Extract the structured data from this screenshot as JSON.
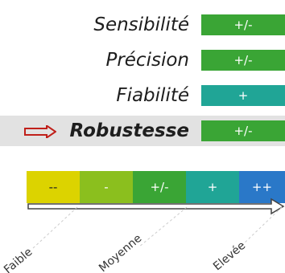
{
  "criteria": [
    {
      "label": "Sensibilité",
      "value": "+/-",
      "color": "#3aa535",
      "highlighted": false
    },
    {
      "label": "Précision",
      "value": "+/-",
      "color": "#3aa535",
      "highlighted": false
    },
    {
      "label": "Fiabilité",
      "value": "+",
      "color": "#20a596",
      "highlighted": false
    },
    {
      "label": "Robustesse",
      "value": "+/-",
      "color": "#3aa535",
      "highlighted": true
    }
  ],
  "scale": {
    "segments": [
      {
        "label": "--",
        "color": "#dcd300"
      },
      {
        "label": "-",
        "color": "#8bbf1e"
      },
      {
        "label": "+/-",
        "color": "#3aa535"
      },
      {
        "label": "+",
        "color": "#20a596"
      },
      {
        "label": "++",
        "color": "#2a78c8"
      }
    ],
    "levels": [
      "Faible",
      "Moyenne",
      "Elevée"
    ]
  },
  "highlight_arrow_color": "#c0201a"
}
